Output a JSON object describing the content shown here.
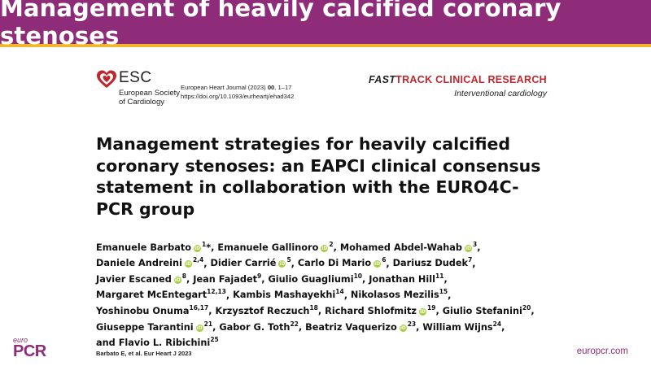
{
  "slide": {
    "header_title": "Management of heavily calcified coronary stenoses",
    "colors": {
      "header_bg": "#8e2c7a",
      "header_accent": "#f3b52a",
      "brand": "#8e2c7a",
      "fasttrack_red": "#c0272d",
      "orcid": "#a6ce39"
    },
    "citation": "Barbato E, et al. Eur Heart J 2023",
    "site": "europcr.com",
    "europcr_logo": {
      "euro": "euro",
      "pcr": "PCR"
    }
  },
  "journal": {
    "esc_name": "ESC",
    "esc_sub1": "European Society",
    "esc_sub2": "of Cardiology",
    "journal_name": "European Heart Journal (2023)",
    "volume": "00",
    "pages": ", 1–17",
    "doi": "https://doi.org/10.1093/eurheartj/ehad342",
    "fasttrack_a": "FAST",
    "fasttrack_b": "TRACK CLINICAL RESEARCH",
    "section": "Interventional cardiology"
  },
  "paper": {
    "title": "Management strategies for heavily calcified coronary stenoses: an EAPCI clinical consensus statement in collaboration with the EURO4C-PCR group",
    "authors": [
      {
        "name": "Emanuele Barbato",
        "orcid": true,
        "sup": "1",
        "extra": "*"
      },
      {
        "name": "Emanuele Gallinoro",
        "orcid": true,
        "sup": "2"
      },
      {
        "name": "Mohamed Abdel-Wahab",
        "orcid": true,
        "sup": "3"
      },
      {
        "name": "Daniele Andreini",
        "orcid": true,
        "sup": "2,4"
      },
      {
        "name": "Didier Carrié",
        "orcid": true,
        "sup": "5"
      },
      {
        "name": "Carlo Di Mario",
        "orcid": true,
        "sup": "6"
      },
      {
        "name": "Dariusz Dudek",
        "orcid": false,
        "sup": "7"
      },
      {
        "name": "Javier Escaned",
        "orcid": true,
        "sup": "8"
      },
      {
        "name": "Jean Fajadet",
        "orcid": false,
        "sup": "9"
      },
      {
        "name": "Giulio Guagliumi",
        "orcid": false,
        "sup": "10"
      },
      {
        "name": "Jonathan Hill",
        "orcid": false,
        "sup": "11"
      },
      {
        "name": "Margaret McEntegart",
        "orcid": false,
        "sup": "12,13"
      },
      {
        "name": "Kambis Mashayekhi",
        "orcid": false,
        "sup": "14"
      },
      {
        "name": "Nikolasos Mezilis",
        "orcid": false,
        "sup": "15"
      },
      {
        "name": "Yoshinobu Onuma",
        "orcid": false,
        "sup": "16,17"
      },
      {
        "name": "Krzysztof Reczuch",
        "orcid": false,
        "sup": "18"
      },
      {
        "name": "Richard Shlofmitz",
        "orcid": true,
        "sup": "19"
      },
      {
        "name": "Giulio Stefanini",
        "orcid": false,
        "sup": "20"
      },
      {
        "name": "Giuseppe Tarantini",
        "orcid": true,
        "sup": "21"
      },
      {
        "name": "Gabor G. Toth",
        "orcid": false,
        "sup": "22"
      },
      {
        "name": "Beatriz Vaquerizo",
        "orcid": true,
        "sup": "23"
      },
      {
        "name": "William Wijns",
        "orcid": false,
        "sup": "24"
      },
      {
        "name": "Flavio L. Ribichini",
        "orcid": false,
        "sup": "25",
        "prefix": "and "
      }
    ]
  }
}
